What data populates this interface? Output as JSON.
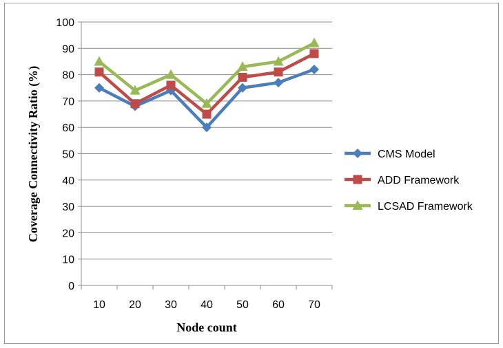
{
  "chart_data": {
    "type": "line",
    "title": "",
    "xlabel": "Node count",
    "ylabel": "Coverage Connectivity Ratio (%)",
    "categories": [
      "10",
      "20",
      "30",
      "40",
      "50",
      "60",
      "70"
    ],
    "ylim": [
      0,
      100
    ],
    "yticks": [
      "0",
      "10",
      "20",
      "30",
      "40",
      "50",
      "60",
      "70",
      "80",
      "90",
      "100"
    ],
    "grid": "horizontal",
    "legend_position": "right",
    "series": [
      {
        "name": "CMS Model",
        "color": "#4a7ebb",
        "marker": "diamond",
        "values": [
          75,
          68,
          74,
          60,
          75,
          77,
          82
        ]
      },
      {
        "name": "ADD Framework",
        "color": "#be4b48",
        "marker": "square",
        "values": [
          81,
          69,
          76,
          65,
          79,
          81,
          88
        ]
      },
      {
        "name": "LCSAD Framework",
        "color": "#98b954",
        "marker": "triangle",
        "values": [
          85,
          74,
          80,
          69,
          83,
          85,
          92
        ]
      }
    ]
  }
}
